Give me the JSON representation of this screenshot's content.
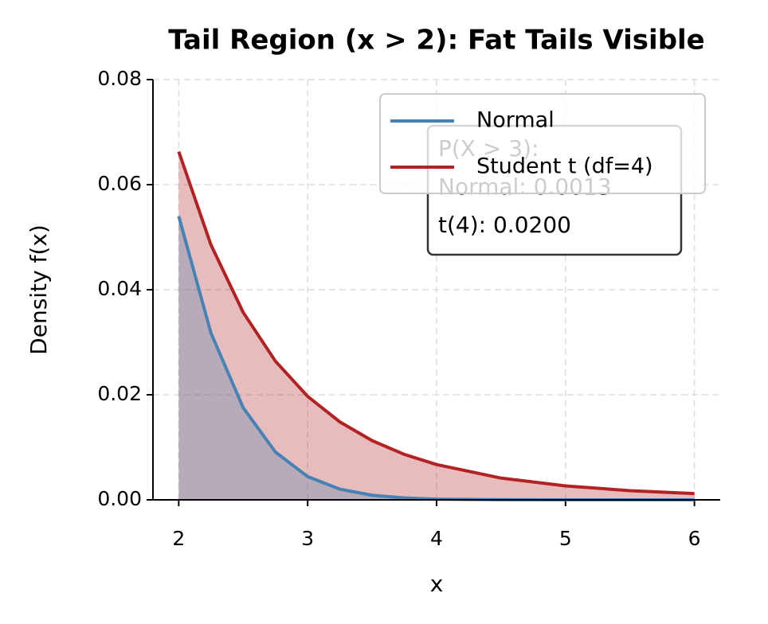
{
  "chart_data": {
    "type": "line",
    "title": "Tail Region (x > 2): Fat Tails Visible",
    "xlabel": "x",
    "ylabel": "Density f(x)",
    "x": [
      2,
      2.25,
      2.5,
      2.75,
      3,
      3.25,
      3.5,
      3.75,
      4,
      4.5,
      5,
      5.5,
      6
    ],
    "series": [
      {
        "name": "Normal",
        "color": "#4682b4",
        "values": [
          0.05399,
          0.03174,
          0.01753,
          0.00909,
          0.00443,
          0.00203,
          0.000873,
          0.000353,
          0.000134,
          1.6e-05,
          1.5e-06,
          1e-07,
          0.0
        ]
      },
      {
        "name": "Student t (df=4)",
        "color": "#b22222",
        "values": [
          0.06629,
          0.04852,
          0.03567,
          0.02639,
          0.01969,
          0.01483,
          0.01127,
          0.00865,
          0.00671,
          0.004144,
          0.002648,
          0.001748,
          0.001186
        ]
      }
    ],
    "fill": true,
    "xlim": [
      1.8,
      6.2
    ],
    "xticks": [
      2,
      3,
      4,
      5,
      6
    ],
    "ylim": [
      0,
      0.08
    ],
    "yticks": [
      {
        "value": 0,
        "label": "0.00"
      },
      {
        "value": 0.02,
        "label": "0.02"
      },
      {
        "value": 0.04,
        "label": "0.04"
      },
      {
        "value": 0.06,
        "label": "0.06"
      },
      {
        "value": 0.08,
        "label": "0.08"
      }
    ],
    "grid": true,
    "legend": "upper right",
    "annotation": [
      "P(X > 3):",
      "Normal: 0.0013",
      "t(4): 0.0200"
    ]
  }
}
